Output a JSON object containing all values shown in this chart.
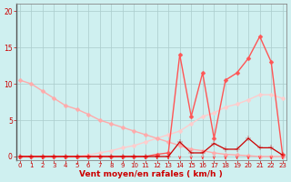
{
  "xlabel": "Vent moyen/en rafales ( km/h )",
  "background_color": "#cff0f0",
  "grid_color": "#aacccc",
  "x_ticks": [
    0,
    1,
    2,
    3,
    4,
    5,
    6,
    7,
    8,
    9,
    10,
    11,
    12,
    13,
    14,
    15,
    16,
    17,
    18,
    19,
    20,
    21,
    22,
    23
  ],
  "y_ticks": [
    0,
    5,
    10,
    15,
    20
  ],
  "ylim": [
    -0.5,
    21
  ],
  "xlim": [
    -0.3,
    23.3
  ],
  "lines": [
    {
      "x": [
        0,
        1,
        2,
        3,
        4,
        5,
        6,
        7,
        8,
        9,
        10,
        11,
        12,
        13,
        14,
        15,
        16,
        17,
        18,
        19,
        20,
        21,
        22,
        23
      ],
      "y": [
        0,
        0,
        0,
        0,
        0,
        0,
        0,
        0,
        0,
        0,
        0,
        0,
        0,
        0,
        2.0,
        0.5,
        0.5,
        1.8,
        1.0,
        1.0,
        2.5,
        1.2,
        1.2,
        0.2
      ],
      "color": "#cc0000",
      "lw": 0.9,
      "marker": "+",
      "ms": 4,
      "zorder": 5
    },
    {
      "x": [
        0,
        1,
        2,
        3,
        4,
        5,
        6,
        7,
        8,
        9,
        10,
        11,
        12,
        13,
        14,
        15,
        16,
        17,
        18,
        19,
        20,
        21,
        22,
        23
      ],
      "y": [
        0,
        0,
        0,
        0,
        0,
        0,
        0,
        0,
        0,
        0,
        0,
        0,
        0.3,
        0.5,
        14.0,
        5.5,
        11.5,
        2.5,
        10.5,
        11.5,
        13.5,
        16.5,
        13.0,
        0.2
      ],
      "color": "#ff5555",
      "lw": 1.0,
      "marker": "D",
      "ms": 2.5,
      "zorder": 4
    },
    {
      "x": [
        0,
        1,
        2,
        3,
        4,
        5,
        6,
        7,
        8,
        9,
        10,
        11,
        12,
        13,
        14,
        15,
        16,
        17,
        18,
        19,
        20,
        21,
        22,
        23
      ],
      "y": [
        10.5,
        10.0,
        9.0,
        8.0,
        7.0,
        6.5,
        5.8,
        5.0,
        4.5,
        4.0,
        3.5,
        3.0,
        2.5,
        2.0,
        1.5,
        1.0,
        0.8,
        0.5,
        0.3,
        0.2,
        0.1,
        0.0,
        0.0,
        0.0
      ],
      "color": "#ffaaaa",
      "lw": 1.0,
      "marker": "D",
      "ms": 2.5,
      "zorder": 3
    },
    {
      "x": [
        0,
        1,
        2,
        3,
        4,
        5,
        6,
        7,
        8,
        9,
        10,
        11,
        12,
        13,
        14,
        15,
        16,
        17,
        18,
        19,
        20,
        21,
        22,
        23
      ],
      "y": [
        0,
        0,
        0,
        0,
        0,
        0,
        0.2,
        0.5,
        0.8,
        1.2,
        1.5,
        2.0,
        2.5,
        3.0,
        3.5,
        4.5,
        5.5,
        6.0,
        6.8,
        7.2,
        7.8,
        8.5,
        8.5,
        8.0
      ],
      "color": "#ffcccc",
      "lw": 1.0,
      "marker": "D",
      "ms": 2.5,
      "zorder": 2
    }
  ],
  "arrows": {
    "x": [
      0,
      1,
      2,
      3,
      4,
      5,
      6,
      7,
      8,
      9,
      10,
      11,
      12,
      13,
      14,
      15,
      16,
      17,
      18,
      19,
      20,
      21,
      22,
      23
    ],
    "color": "#ff4444"
  }
}
